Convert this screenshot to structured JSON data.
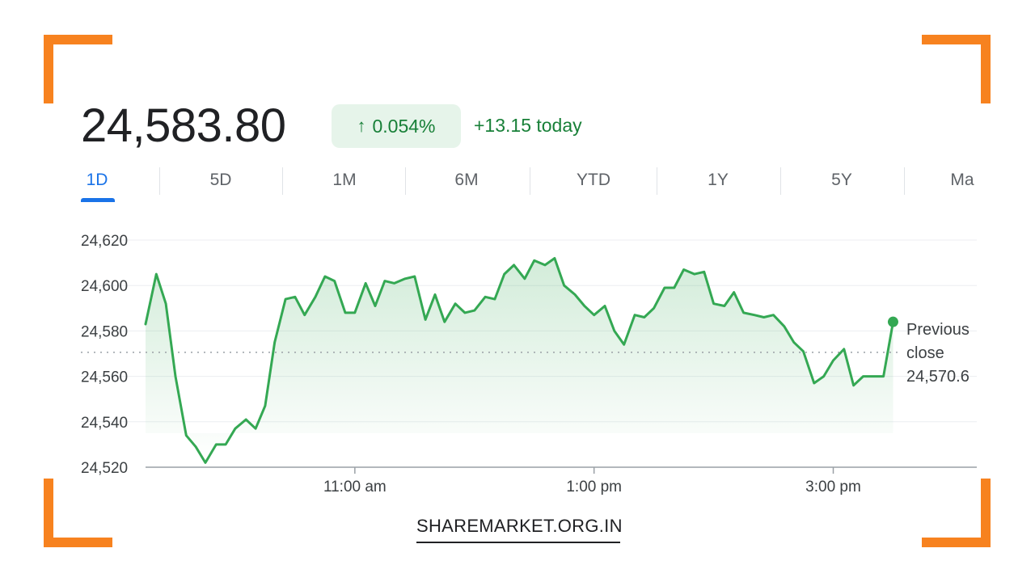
{
  "quote": {
    "price": "24,583.80",
    "change_arrow": "↑",
    "change_percent": "0.054%",
    "change_today": "+13.15 today"
  },
  "tabs": [
    "1D",
    "5D",
    "1M",
    "6M",
    "YTD",
    "1Y",
    "5Y",
    "Ma"
  ],
  "active_tab": "1D",
  "previous_close": {
    "line1": "Previous",
    "line2": "close",
    "value": "24,570.6"
  },
  "watermark": "SHAREMARKET.ORG.IN",
  "colors": {
    "brand_orange": "#f7821f",
    "positive_green": "#34a853",
    "positive_text": "#188038",
    "active_blue": "#1a73e8"
  },
  "chart_data": {
    "type": "line",
    "ylim": [
      24520,
      24620
    ],
    "yticks": [
      24620,
      24600,
      24580,
      24560,
      24540,
      24520
    ],
    "ytick_labels": [
      "24,620",
      "24,600",
      "24,580",
      "24,560",
      "24,540",
      "24,520"
    ],
    "xlim": [
      9.25,
      16.2
    ],
    "xticks": [
      11,
      13,
      15
    ],
    "xtick_labels": [
      "11:00 am",
      "1:00 pm",
      "3:00 pm"
    ],
    "previous_close": 24570.6,
    "grid": true,
    "series": [
      {
        "x": [
          9.25,
          9.34,
          9.42,
          9.5,
          9.59,
          9.67,
          9.75,
          9.84,
          9.92,
          10,
          10.09,
          10.17,
          10.25,
          10.33,
          10.42,
          10.5,
          10.58,
          10.67,
          10.75,
          10.83,
          10.92,
          11,
          11.09,
          11.17,
          11.25,
          11.33,
          11.42,
          11.5,
          11.59,
          11.67,
          11.75,
          11.84,
          11.92,
          12,
          12.09,
          12.17,
          12.25,
          12.33,
          12.42,
          12.5,
          12.59,
          12.67,
          12.75,
          12.84,
          12.92,
          13,
          13.09,
          13.17,
          13.25,
          13.34,
          13.42,
          13.5,
          13.59,
          13.67,
          13.75,
          13.84,
          13.92,
          14,
          14.09,
          14.17,
          14.25,
          14.34,
          14.42,
          14.5,
          14.59,
          14.67,
          14.75,
          14.84,
          14.92,
          15,
          15.09,
          15.17,
          15.25,
          15.34,
          15.42,
          15.5
        ],
        "y": [
          24583,
          24605,
          24592,
          24560,
          24534,
          24529,
          24522,
          24530,
          24530,
          24537,
          24541,
          24537,
          24547,
          24575,
          24594,
          24595,
          24587,
          24595,
          24604,
          24602,
          24588,
          24588,
          24601,
          24591,
          24602,
          24601,
          24603,
          24604,
          24585,
          24596,
          24584,
          24592,
          24588,
          24589,
          24595,
          24594,
          24605,
          24609,
          24603,
          24611,
          24609,
          24612,
          24600,
          24596,
          24591,
          24587,
          24591,
          24580,
          24574,
          24587,
          24586,
          24590,
          24599,
          24599,
          24607,
          24605,
          24606,
          24592,
          24591,
          24597,
          24588,
          24587,
          24586,
          24587,
          24582,
          24575,
          24571,
          24557,
          24560,
          24567,
          24572,
          24556,
          24560,
          24560,
          24560,
          24584
        ]
      }
    ]
  }
}
